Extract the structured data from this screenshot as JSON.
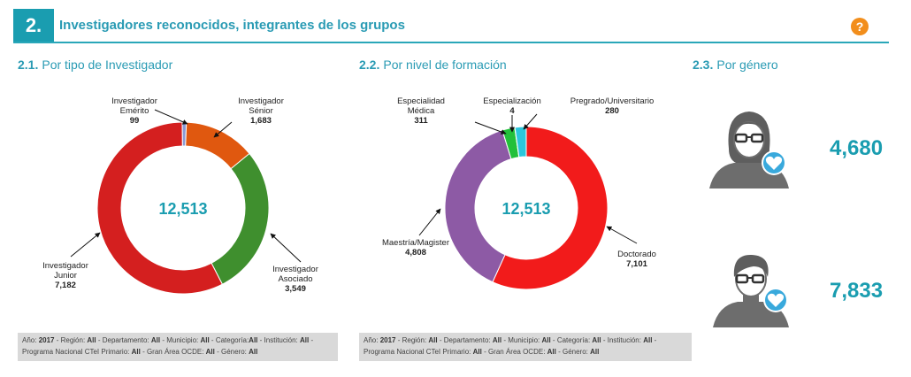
{
  "header": {
    "number": "2.",
    "title": "Investigadores reconocidos, integrantes de los grupos"
  },
  "help_icon": "question-icon",
  "sections": [
    {
      "num": "2.1.",
      "title": "Por tipo de Investigador"
    },
    {
      "num": "2.2.",
      "title": "Por nivel de formación"
    },
    {
      "num": "2.3.",
      "title": "Por género"
    }
  ],
  "chart_data": [
    {
      "type": "pie",
      "variant": "donut",
      "center_label": "12,513",
      "labels": [
        "Investigador Emérito",
        "Investigador Sénior",
        "Investigador Asociado",
        "Investigador Junior"
      ],
      "label_lines": [
        [
          "Investigador",
          "Emérito"
        ],
        [
          "Investigador",
          "Sénior"
        ],
        [
          "Investigador",
          "Asociado"
        ],
        [
          "Investigador",
          "Junior"
        ]
      ],
      "values": [
        99,
        1683,
        3549,
        7182
      ],
      "value_labels": [
        "99",
        "1,683",
        "3,549",
        "7,182"
      ],
      "colors": [
        "#8a9bd6",
        "#e0580f",
        "#3f8f2e",
        "#d41f1f"
      ]
    },
    {
      "type": "pie",
      "variant": "donut",
      "center_label": "12,513",
      "labels": [
        "Doctorado",
        "Maestría/Magister",
        "Especialidad Médica",
        "Especialización",
        "Pregrado/Universitario"
      ],
      "label_lines": [
        [
          "Doctorado"
        ],
        [
          "Maestría/Magister"
        ],
        [
          "Especialidad",
          "Médica"
        ],
        [
          "Especialización"
        ],
        [
          "Pregrado/Universitario"
        ]
      ],
      "values": [
        7101,
        4808,
        311,
        4,
        280
      ],
      "value_labels": [
        "7,101",
        "4,808",
        "311",
        "4",
        "280"
      ],
      "colors": [
        "#f21b1b",
        "#8d5aa5",
        "#22c03a",
        "#1a4fd6",
        "#2bc7dc"
      ]
    }
  ],
  "gender": {
    "female": {
      "value": "4,680",
      "icon": "woman-avatar-icon"
    },
    "male": {
      "value": "7,833",
      "icon": "man-avatar-icon"
    }
  },
  "filters": [
    [
      {
        "k": "Año: ",
        "v": "2017"
      },
      {
        "k": " - Región: ",
        "v": "All"
      },
      {
        "k": " - Departamento: ",
        "v": "All"
      },
      {
        "k": " - Municipio: ",
        "v": "All"
      },
      {
        "k": " - Categoría:",
        "v": "All"
      },
      {
        "k": " - Institución: ",
        "v": "All"
      },
      {
        "k": " - Programa Nacional CTeI Primario: ",
        "v": "All"
      },
      {
        "k": " - Gran Área OCDE: ",
        "v": "All"
      },
      {
        "k": " - Género: ",
        "v": "All"
      }
    ],
    [
      {
        "k": "Año: ",
        "v": "2017"
      },
      {
        "k": " - Región: ",
        "v": "All"
      },
      {
        "k": " - Departamento: ",
        "v": "All"
      },
      {
        "k": " - Municipio: ",
        "v": "All"
      },
      {
        "k": " - Categoría: ",
        "v": "All"
      },
      {
        "k": " - Institución: ",
        "v": "All"
      },
      {
        "k": " - Programa Nacional CTeI Primario: ",
        "v": "All"
      },
      {
        "k": " - Gran Área OCDE: ",
        "v": "All"
      },
      {
        "k": " - Género: ",
        "v": "All"
      }
    ]
  ]
}
